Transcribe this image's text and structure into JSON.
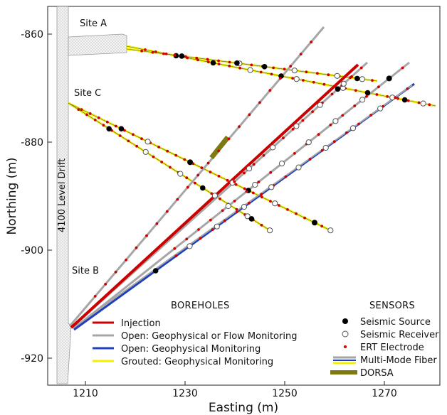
{
  "axes": {
    "xlabel": "Easting (m)",
    "ylabel": "Northing (m)",
    "xticks": [
      "1210",
      "1230",
      "1250",
      "1270"
    ],
    "yticks": [
      "-860",
      "-880",
      "-900",
      "-920"
    ]
  },
  "labels": {
    "site_a": "Site A",
    "site_b": "Site B",
    "site_c": "Site C",
    "drift": "4100 Level Drift"
  },
  "legend_boreholes": {
    "title": "BOREHOLES",
    "items": [
      {
        "label": "Injection",
        "color": "#cc0000"
      },
      {
        "label": "Open: Geophysical or Flow Monitoring",
        "color": "#a6a6a6"
      },
      {
        "label": "Open: Geophysical Monitoring",
        "color": "#1f3fbf"
      },
      {
        "label": "Grouted: Geophysical Monitoring",
        "color": "#f2f200"
      }
    ]
  },
  "legend_sensors": {
    "title": "SENSORS",
    "items": [
      {
        "label": "Seismic Source"
      },
      {
        "label": "Seismic Receiver"
      },
      {
        "label": "ERT Electrode"
      },
      {
        "label": "Multi-Mode Fiber"
      },
      {
        "label": "DORSA"
      }
    ]
  },
  "colors": {
    "injection": "#cc0000",
    "open_flow": "#a6a6a6",
    "open_geo": "#1f3fbf",
    "grouted": "#f2f200",
    "ert": "#cc0000",
    "dorsa": "#7d7a0f"
  }
}
